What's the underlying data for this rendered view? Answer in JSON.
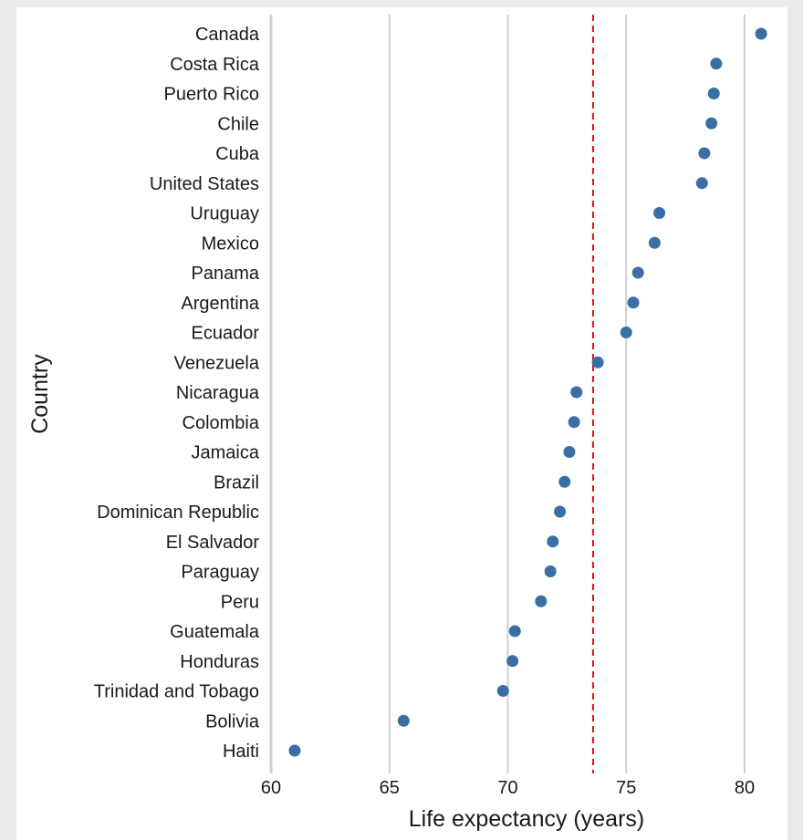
{
  "chart_data": {
    "type": "scatter",
    "title": "",
    "xlabel": "Life expectancy (years)",
    "ylabel": "Country",
    "xlim": [
      60,
      82.5
    ],
    "x_ticks": [
      60,
      65,
      70,
      75,
      80
    ],
    "x_tick_labels": [
      "60",
      "65",
      "70",
      "75",
      "80"
    ],
    "grid": "vertical major gridlines at x ticks",
    "point_color": "#3a6ea5",
    "reference_line": {
      "x": 73.6,
      "style": "dashed",
      "color": "#e8101c"
    },
    "categories": [
      "Canada",
      "Costa Rica",
      "Puerto Rico",
      "Chile",
      "Cuba",
      "United States",
      "Uruguay",
      "Mexico",
      "Panama",
      "Argentina",
      "Ecuador",
      "Venezuela",
      "Nicaragua",
      "Colombia",
      "Jamaica",
      "Brazil",
      "Dominican Republic",
      "El Salvador",
      "Paraguay",
      "Peru",
      "Guatemala",
      "Honduras",
      "Trinidad and Tobago",
      "Bolivia",
      "Haiti"
    ],
    "values": [
      80.7,
      78.8,
      78.7,
      78.6,
      78.3,
      78.2,
      76.4,
      76.2,
      75.5,
      75.3,
      75.0,
      73.8,
      72.9,
      72.8,
      72.6,
      72.4,
      72.2,
      71.9,
      71.8,
      71.4,
      70.3,
      70.2,
      69.8,
      65.6,
      61.0
    ]
  },
  "colors": {
    "background": "#ebebeb",
    "panel": "#ffffff",
    "gridline": "#d0d0d0",
    "text": "#1a1a1a"
  }
}
